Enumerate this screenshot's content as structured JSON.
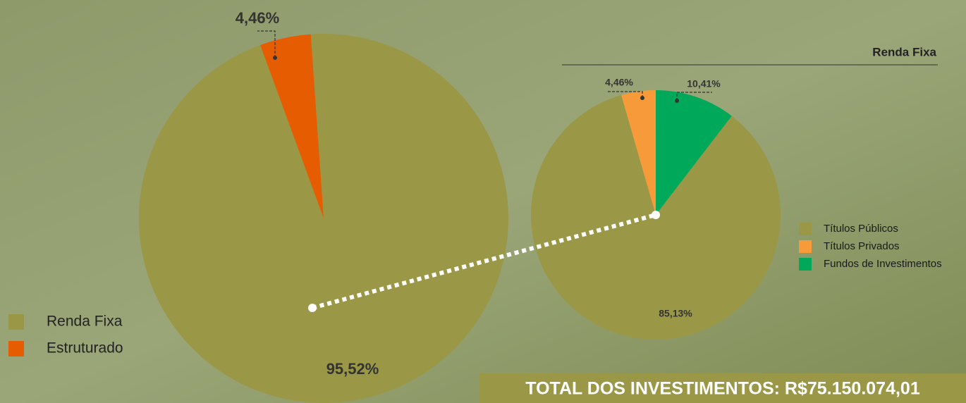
{
  "chart_data": [
    {
      "type": "pie",
      "categories": [
        "Renda Fixa",
        "Estruturado"
      ],
      "values": [
        95.52,
        4.46
      ],
      "value_labels": [
        "95,52%",
        "4,46%"
      ],
      "colors": [
        "#9a9846",
        "#e65c00"
      ],
      "legend": "bottom-left"
    },
    {
      "type": "pie",
      "title": "Renda Fixa",
      "categories": [
        "Títulos Públicos",
        "Títulos Privados",
        "Fundos de Investimentos"
      ],
      "values": [
        85.13,
        4.46,
        10.41
      ],
      "value_labels": [
        "85,13%",
        "4,46%",
        "10,41%"
      ],
      "colors": [
        "#9a9846",
        "#f79a3a",
        "#00a85a"
      ],
      "legend": "right"
    }
  ],
  "total_banner": "TOTAL DOS INVESTIMENTOS: R$75.150.074,01"
}
